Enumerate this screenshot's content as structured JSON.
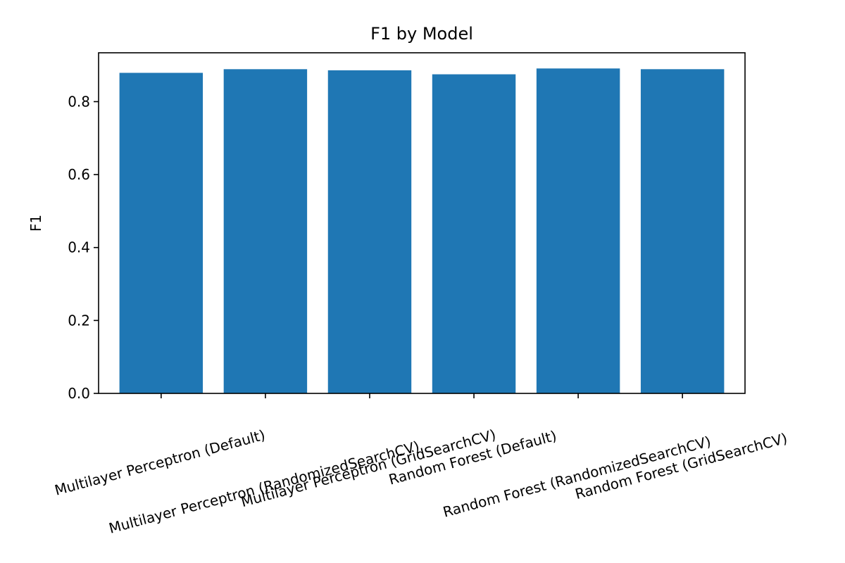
{
  "chart_data": {
    "type": "bar",
    "title": "F1 by Model",
    "xlabel": "",
    "ylabel": "F1",
    "ylim": [
      0,
      0.934
    ],
    "yticks": [
      0.0,
      0.2,
      0.4,
      0.6,
      0.8
    ],
    "ytick_labels": [
      "0.0",
      "0.2",
      "0.4",
      "0.6",
      "0.8"
    ],
    "categories": [
      "Multilayer Perceptron (Default)",
      "Multilayer Perceptron (RandomizedSearchCV)",
      "Multilayer Perceptron (GridSearchCV)",
      "Random Forest (Default)",
      "Random Forest (RandomizedSearchCV)",
      "Random Forest (GridSearchCV)"
    ],
    "values": [
      0.879,
      0.889,
      0.886,
      0.875,
      0.891,
      0.889
    ],
    "bar_color": "#1f77b4",
    "grid": false
  }
}
